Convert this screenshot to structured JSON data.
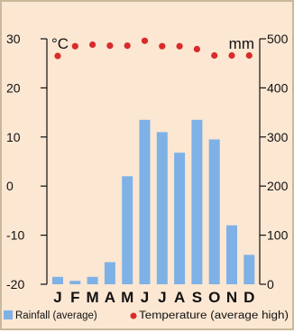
{
  "chart_data": {
    "type": "bar",
    "categories": [
      "J",
      "F",
      "M",
      "A",
      "M",
      "J",
      "J",
      "A",
      "S",
      "O",
      "N",
      "D"
    ],
    "series": [
      {
        "name": "Rainfall (average)",
        "axis": "right",
        "chart_type": "bar",
        "values": [
          15,
          7,
          15,
          45,
          220,
          335,
          310,
          268,
          335,
          295,
          120,
          60
        ]
      },
      {
        "name": "Temperature (average high)",
        "axis": "left",
        "chart_type": "scatter",
        "values": [
          26.5,
          28.5,
          28.8,
          28.6,
          28.6,
          29.6,
          28.5,
          28.5,
          27.9,
          26.6,
          26.6,
          26.6
        ]
      }
    ],
    "y_left": {
      "unit": "°C",
      "ticks": [
        "30",
        "20",
        "10",
        "0",
        "-10",
        "-20"
      ],
      "range": [
        -20,
        30
      ]
    },
    "y_right": {
      "unit": "mm",
      "ticks": [
        "500",
        "400",
        "300",
        "200",
        "100",
        "0"
      ],
      "range": [
        0,
        500
      ]
    },
    "grid": false,
    "legend_position": "bottom",
    "colors": {
      "bar": "#7eb1e6",
      "dot": "#d92b2b",
      "background": "#fbe7d2",
      "border": "#c9b99a"
    }
  }
}
